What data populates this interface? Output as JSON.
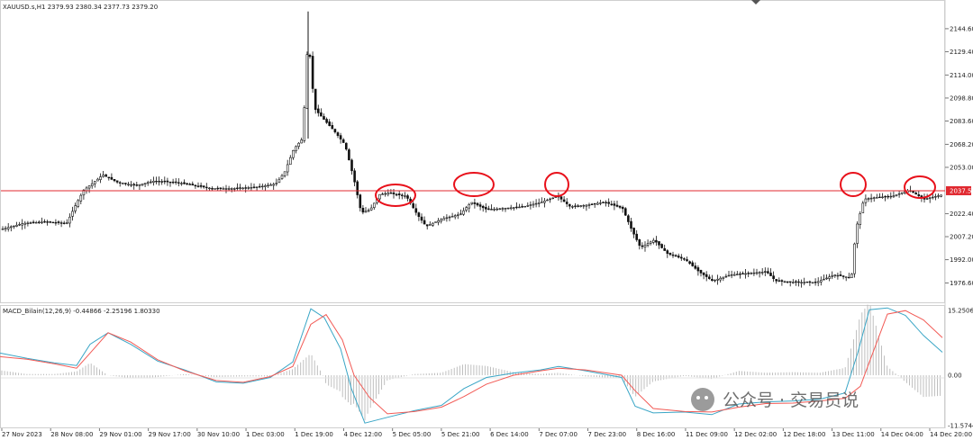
{
  "header": {
    "symbol_line": "XAUUSD.s,H1  2379.93 2380.34 2377.73 2379.20"
  },
  "price_axis": {
    "ticks": [
      "2144.60",
      "2129.40",
      "2114.00",
      "2098.80",
      "2083.60",
      "2068.20",
      "2053.00",
      "2022.40",
      "2007.20",
      "1992.00",
      "1976.60"
    ],
    "ylim": [
      1965,
      2160
    ],
    "level_label": "2037.55"
  },
  "macd_panel": {
    "label": "MACD_Bilain(12,26,9) -0.44866 -2.25196 1.80330",
    "ticks": [
      "15.25069",
      "0.00",
      "-11.57443"
    ],
    "ylim": [
      -11.57443,
      15.25069
    ]
  },
  "x_axis": {
    "labels": [
      "27 Nov 2023",
      "28 Nov 08:00",
      "29 Nov 01:00",
      "29 Nov 17:00",
      "30 Nov 10:00",
      "1 Dec 03:00",
      "1 Dec 19:00",
      "4 Dec 12:00",
      "5 Dec 05:00",
      "5 Dec 21:00",
      "6 Dec 14:00",
      "7 Dec 07:00",
      "7 Dec 23:00",
      "8 Dec 16:00",
      "11 Dec 09:00",
      "12 Dec 02:00",
      "12 Dec 18:00",
      "13 Dec 11:00",
      "14 Dec 04:00",
      "14 Dec 20:00"
    ]
  },
  "watermark": {
    "text": "公众号 · 交易员说"
  },
  "colors": {
    "resistance_line": "#e0282f",
    "annotation_circle": "#e8101a",
    "macd_line": "#3aa6c6",
    "signal_line": "#f25a55",
    "histogram": "#b8b8b8",
    "candle": "#111111",
    "grid_border": "#cfcfcf"
  },
  "chart_data": [
    {
      "type": "candlestick",
      "title": "XAUUSD.s,H1",
      "ylim": [
        1965,
        2160
      ],
      "resistance_level": 2037.55,
      "annotations": [
        "circle",
        "circle",
        "circle",
        "circle",
        "circle"
      ],
      "close_path": [
        {
          "x": 0,
          "close": 2012
        },
        {
          "x": 25,
          "close": 2016
        },
        {
          "x": 50,
          "close": 2017
        },
        {
          "x": 73,
          "close": 2016
        },
        {
          "x": 82,
          "close": 2027
        },
        {
          "x": 92,
          "close": 2038
        },
        {
          "x": 103,
          "close": 2043
        },
        {
          "x": 113,
          "close": 2048
        },
        {
          "x": 130,
          "close": 2043
        },
        {
          "x": 150,
          "close": 2041
        },
        {
          "x": 170,
          "close": 2044
        },
        {
          "x": 195,
          "close": 2043
        },
        {
          "x": 215,
          "close": 2041
        },
        {
          "x": 235,
          "close": 2039
        },
        {
          "x": 260,
          "close": 2039
        },
        {
          "x": 285,
          "close": 2040
        },
        {
          "x": 305,
          "close": 2042
        },
        {
          "x": 315,
          "close": 2050
        },
        {
          "x": 325,
          "close": 2065
        },
        {
          "x": 335,
          "close": 2072
        },
        {
          "x": 341,
          "close": 2140
        },
        {
          "x": 348,
          "close": 2092
        },
        {
          "x": 358,
          "close": 2085
        },
        {
          "x": 370,
          "close": 2077
        },
        {
          "x": 382,
          "close": 2068
        },
        {
          "x": 392,
          "close": 2045
        },
        {
          "x": 400,
          "close": 2023
        },
        {
          "x": 410,
          "close": 2025
        },
        {
          "x": 420,
          "close": 2035
        },
        {
          "x": 430,
          "close": 2036
        },
        {
          "x": 450,
          "close": 2034
        },
        {
          "x": 462,
          "close": 2022
        },
        {
          "x": 472,
          "close": 2014
        },
        {
          "x": 490,
          "close": 2019
        },
        {
          "x": 510,
          "close": 2022
        },
        {
          "x": 522,
          "close": 2030
        },
        {
          "x": 540,
          "close": 2025
        },
        {
          "x": 560,
          "close": 2026
        },
        {
          "x": 580,
          "close": 2027
        },
        {
          "x": 600,
          "close": 2030
        },
        {
          "x": 618,
          "close": 2034
        },
        {
          "x": 632,
          "close": 2027
        },
        {
          "x": 650,
          "close": 2028
        },
        {
          "x": 670,
          "close": 2030
        },
        {
          "x": 690,
          "close": 2026
        },
        {
          "x": 700,
          "close": 2012
        },
        {
          "x": 710,
          "close": 2000
        },
        {
          "x": 725,
          "close": 2005
        },
        {
          "x": 740,
          "close": 1996
        },
        {
          "x": 760,
          "close": 1992
        },
        {
          "x": 775,
          "close": 1984
        },
        {
          "x": 790,
          "close": 1978
        },
        {
          "x": 810,
          "close": 1982
        },
        {
          "x": 830,
          "close": 1983
        },
        {
          "x": 850,
          "close": 1984
        },
        {
          "x": 860,
          "close": 1978
        },
        {
          "x": 880,
          "close": 1977
        },
        {
          "x": 905,
          "close": 1977
        },
        {
          "x": 925,
          "close": 1982
        },
        {
          "x": 944,
          "close": 1980
        },
        {
          "x": 949,
          "close": 2012
        },
        {
          "x": 958,
          "close": 2032
        },
        {
          "x": 970,
          "close": 2033
        },
        {
          "x": 990,
          "close": 2034
        },
        {
          "x": 1008,
          "close": 2038
        },
        {
          "x": 1025,
          "close": 2032
        },
        {
          "x": 1046,
          "close": 2035
        }
      ]
    },
    {
      "type": "line",
      "title": "MACD_Bilain(12,26,9)",
      "ylim": [
        -11.57443,
        15.25069
      ],
      "series": [
        {
          "values": [
            [
              0,
              5
            ],
            [
              30,
              3.8
            ],
            [
              60,
              2.8
            ],
            [
              85,
              2.2
            ],
            [
              100,
              7
            ],
            [
              120,
              9.6
            ],
            [
              145,
              7
            ],
            [
              175,
              3.2
            ],
            [
              205,
              1.2
            ],
            [
              240,
              -1.5
            ],
            [
              270,
              -1.8
            ],
            [
              300,
              -0.5
            ],
            [
              325,
              3
            ],
            [
              345,
              15
            ],
            [
              360,
              13
            ],
            [
              378,
              6
            ],
            [
              390,
              -3
            ],
            [
              405,
              -10.8
            ],
            [
              430,
              -9.5
            ],
            [
              460,
              -8
            ],
            [
              490,
              -6.8
            ],
            [
              515,
              -3
            ],
            [
              540,
              -0.5
            ],
            [
              570,
              0.5
            ],
            [
              600,
              1.2
            ],
            [
              620,
              2
            ],
            [
              650,
              1
            ],
            [
              690,
              -0.5
            ],
            [
              705,
              -7
            ],
            [
              725,
              -8.5
            ],
            [
              760,
              -8.3
            ],
            [
              790,
              -8.9
            ],
            [
              820,
              -6.5
            ],
            [
              850,
              -6
            ],
            [
              880,
              -5.8
            ],
            [
              910,
              -5.4
            ],
            [
              938,
              -4
            ],
            [
              952,
              5
            ],
            [
              965,
              14.8
            ],
            [
              985,
              15.2
            ],
            [
              1005,
              13.5
            ],
            [
              1025,
              9
            ],
            [
              1046,
              5.2
            ]
          ]
        },
        {
          "values": [
            [
              0,
              4.2
            ],
            [
              30,
              3.6
            ],
            [
              60,
              2.6
            ],
            [
              85,
              1.6
            ],
            [
              100,
              5
            ],
            [
              120,
              9.6
            ],
            [
              145,
              7.5
            ],
            [
              175,
              3.5
            ],
            [
              205,
              1
            ],
            [
              240,
              -1.2
            ],
            [
              270,
              -1.6
            ],
            [
              300,
              -0.3
            ],
            [
              325,
              2
            ],
            [
              345,
              11.5
            ],
            [
              362,
              13.7
            ],
            [
              380,
              8
            ],
            [
              393,
              0
            ],
            [
              410,
              -5
            ],
            [
              430,
              -8.7
            ],
            [
              460,
              -8.2
            ],
            [
              490,
              -7.2
            ],
            [
              515,
              -4.8
            ],
            [
              540,
              -2
            ],
            [
              570,
              0
            ],
            [
              600,
              1
            ],
            [
              620,
              1.6
            ],
            [
              650,
              1.2
            ],
            [
              690,
              0
            ],
            [
              705,
              -3.5
            ],
            [
              725,
              -7.5
            ],
            [
              760,
              -8.2
            ],
            [
              790,
              -8.3
            ],
            [
              820,
              -7.2
            ],
            [
              850,
              -6.4
            ],
            [
              880,
              -6.3
            ],
            [
              910,
              -5.8
            ],
            [
              938,
              -5.2
            ],
            [
              955,
              -2.5
            ],
            [
              965,
              3
            ],
            [
              985,
              13.8
            ],
            [
              1005,
              14.6
            ],
            [
              1025,
              12.5
            ],
            [
              1046,
              8.5
            ]
          ]
        }
      ]
    }
  ]
}
